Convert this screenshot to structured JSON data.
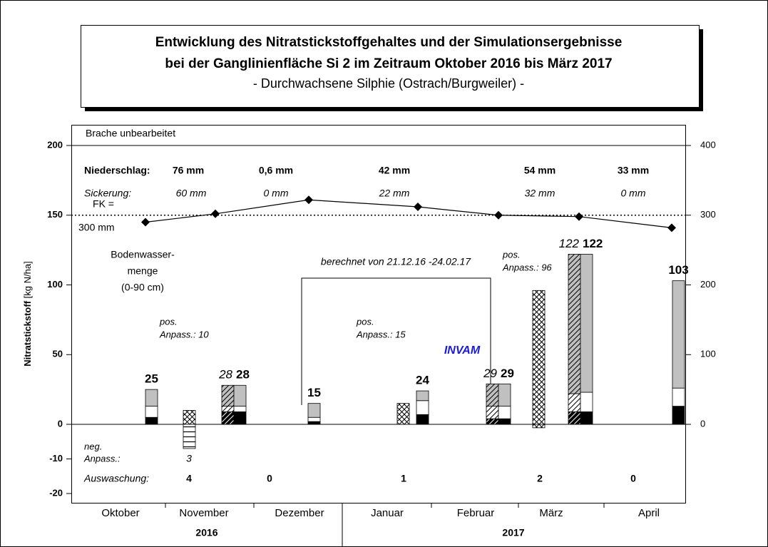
{
  "title_lines": [
    "Entwicklung des Nitratstickstoffgehaltes und der Simulationsergebnisse",
    "bei der Ganglinienfläche Si 2 im Zeitraum Oktober 2016 bis März 2017",
    "- Durchwachsene Silphie (Ostrach/Burgweiler) -"
  ],
  "chart_data": {
    "type": "bar",
    "y_label_bold": "Nitratstickstoff",
    "y_label_unit": "[kg N/ha]",
    "categories": [
      "Oktober",
      "November",
      "Dezember",
      "Januar",
      "Februar",
      "März",
      "April"
    ],
    "years": [
      "2016",
      "2017"
    ],
    "ylim": [
      -20,
      200
    ],
    "yticks": [
      -20,
      -10,
      0,
      50,
      100,
      150,
      200
    ],
    "y2lim": [
      0,
      400
    ],
    "y2ticks": [
      0,
      100,
      200,
      300,
      400
    ],
    "reference_line": 150,
    "bars": [
      {
        "category": 0,
        "segments": [
          {
            "value": 5,
            "color": "#000000",
            "pattern": "none"
          },
          {
            "value": 8,
            "color": "#ffffff",
            "pattern": "none"
          },
          {
            "value": 12,
            "color": "#c0c0c0",
            "pattern": "none"
          }
        ],
        "label": 25,
        "label_style": "bold"
      },
      {
        "category": 1,
        "segments": [
          {
            "value": 10,
            "color": "#ffffff",
            "pattern": "cross"
          },
          {
            "value": -7,
            "color": "#ffffff",
            "pattern": "horizontal"
          }
        ]
      },
      {
        "category": 1,
        "segments": [
          {
            "value": 9,
            "color": "#000000",
            "pattern": "diagonal"
          },
          {
            "value": 4,
            "color": "#ffffff",
            "pattern": "diagonal"
          },
          {
            "value": 15,
            "color": "#c0c0c0",
            "pattern": "diagonal"
          }
        ],
        "label": 28,
        "label_style": "italic"
      },
      {
        "category": 1,
        "segments": [
          {
            "value": 9,
            "color": "#000000",
            "pattern": "none"
          },
          {
            "value": 4,
            "color": "#ffffff",
            "pattern": "none"
          },
          {
            "value": 15,
            "color": "#c0c0c0",
            "pattern": "none"
          }
        ],
        "label": 28,
        "label_style": "bold"
      },
      {
        "category": 2,
        "segments": [
          {
            "value": 2,
            "color": "#000000",
            "pattern": "none"
          },
          {
            "value": 3,
            "color": "#ffffff",
            "pattern": "none"
          },
          {
            "value": 10,
            "color": "#c0c0c0",
            "pattern": "none"
          }
        ],
        "label": 15,
        "label_style": "bold"
      },
      {
        "category": 3,
        "segments": [
          {
            "value": 15,
            "color": "#ffffff",
            "pattern": "cross"
          }
        ]
      },
      {
        "category": 3,
        "segments": [
          {
            "value": 7,
            "color": "#000000",
            "pattern": "none"
          },
          {
            "value": 10,
            "color": "#ffffff",
            "pattern": "none"
          },
          {
            "value": 7,
            "color": "#c0c0c0",
            "pattern": "none"
          }
        ],
        "label": 24,
        "label_style": "bold"
      },
      {
        "category": 4,
        "segments": [
          {
            "value": 4,
            "color": "#000000",
            "pattern": "diagonal"
          },
          {
            "value": 9,
            "color": "#ffffff",
            "pattern": "diagonal"
          },
          {
            "value": 16,
            "color": "#c0c0c0",
            "pattern": "diagonal"
          }
        ],
        "label": 29,
        "label_style": "italic"
      },
      {
        "category": 4,
        "segments": [
          {
            "value": 4,
            "color": "#000000",
            "pattern": "none"
          },
          {
            "value": 9,
            "color": "#ffffff",
            "pattern": "none"
          },
          {
            "value": 16,
            "color": "#c0c0c0",
            "pattern": "none"
          }
        ],
        "label": 29,
        "label_style": "bold"
      },
      {
        "category": 5,
        "segments": [
          {
            "value": 96,
            "color": "#ffffff",
            "pattern": "cross"
          },
          {
            "value": -1,
            "color": "#ffffff",
            "pattern": "cross"
          }
        ]
      },
      {
        "category": 5,
        "segments": [
          {
            "value": 9,
            "color": "#000000",
            "pattern": "diagonal"
          },
          {
            "value": 13,
            "color": "#ffffff",
            "pattern": "diagonal"
          },
          {
            "value": 100,
            "color": "#c0c0c0",
            "pattern": "diagonal"
          }
        ],
        "label": 122,
        "label_style": "italic"
      },
      {
        "category": 5,
        "segments": [
          {
            "value": 9,
            "color": "#000000",
            "pattern": "none"
          },
          {
            "value": 14,
            "color": "#ffffff",
            "pattern": "none"
          },
          {
            "value": 99,
            "color": "#c0c0c0",
            "pattern": "none"
          }
        ],
        "label": 122,
        "label_style": "bold"
      },
      {
        "category": 6,
        "segments": [
          {
            "value": 13,
            "color": "#000000",
            "pattern": "none"
          },
          {
            "value": 13,
            "color": "#ffffff",
            "pattern": "none"
          },
          {
            "value": 77,
            "color": "#c0c0c0",
            "pattern": "none"
          }
        ],
        "label": 103,
        "label_style": "bold"
      }
    ],
    "soil_water": {
      "axis": "y2",
      "color": "#000000",
      "values": [
        290,
        302,
        322,
        312,
        300,
        298,
        282
      ]
    },
    "niederschlag": {
      "label": "Niederschlag:",
      "values": [
        "76 mm",
        "0,6 mm",
        "42 mm",
        "54 mm",
        "33 mm"
      ]
    },
    "sickerung": {
      "label": "Sickerung:",
      "values": [
        "60 mm",
        "0 mm",
        "22 mm",
        "32 mm",
        "0 mm"
      ]
    },
    "auswaschung": {
      "label": "Auswaschung:",
      "values": [
        4,
        0,
        1,
        2,
        0
      ]
    },
    "annotations": {
      "brache": "Brache unbearbeitet",
      "fk": "FK =",
      "fk_value": "300 mm",
      "bodenwasser": [
        "Bodenwasser-",
        "menge",
        "(0-90 cm)"
      ],
      "anpass_nov": [
        "pos.",
        "Anpass.: 10"
      ],
      "berechnet": "berechnet von 21.12.16 -24.02.17",
      "anpass_jan": [
        "pos.",
        "Anpass.: 15"
      ],
      "invam": "INVAM",
      "anpass_mar": [
        "pos.",
        "Anpass.: 96"
      ],
      "neg_anpass": [
        "neg.",
        "Anpass.:",
        "3"
      ]
    }
  }
}
